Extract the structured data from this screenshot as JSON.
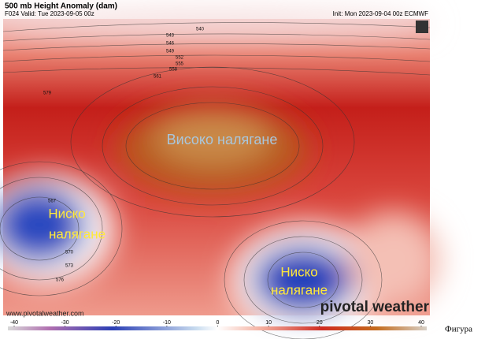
{
  "header": {
    "title": "500 mb Height Anomaly (dam)",
    "valid": "F024 Valid: Tue 2023-09-05 00z",
    "init": "Init: Mon 2023-09-04 00z ECMWF"
  },
  "labels": {
    "high": "Високо налягане",
    "low_west": [
      "Ниско",
      "налягане"
    ],
    "low_south": [
      "Ниско",
      "налягане"
    ]
  },
  "contour_labels": [
    "540",
    "543",
    "546",
    "549",
    "552",
    "555",
    "558",
    "561",
    "567",
    "570",
    "573",
    "576",
    "579"
  ],
  "watermark": {
    "url": "www.pivotalweather.com",
    "brand": "pivotal weather"
  },
  "colorbar": {
    "lim": [
      -40,
      40
    ],
    "ticks": [
      -40,
      -30,
      -20,
      -10,
      0,
      10,
      20,
      30,
      40
    ]
  },
  "caption": "Фигура"
}
